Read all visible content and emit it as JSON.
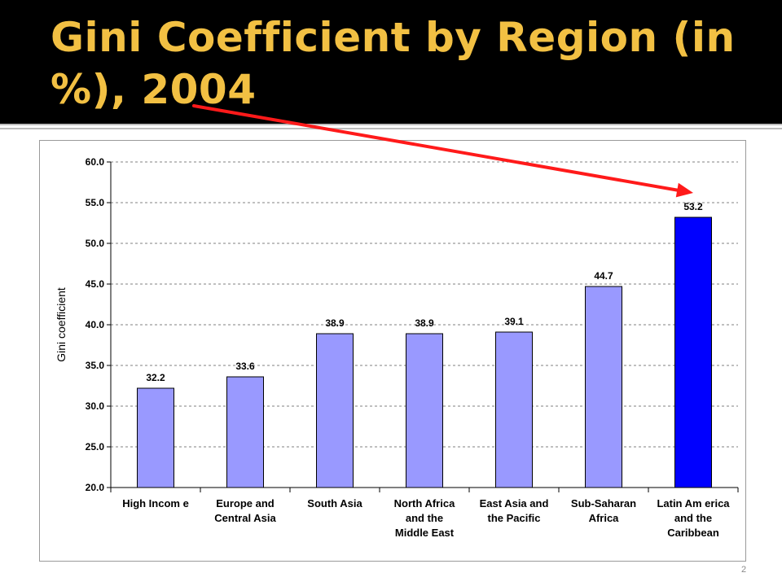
{
  "slide": {
    "title": "Gini Coefficient by Region (in %), 2004",
    "page_number": "2"
  },
  "colors": {
    "header_bg": "#000000",
    "title_color": "#f2c043",
    "bar_default": "#9999ff",
    "bar_highlight": "#0000ff",
    "arrow": "#ff1a1a"
  },
  "chart_data": {
    "type": "bar",
    "title": "",
    "xlabel": "",
    "ylabel": "Gini coefficient",
    "ylim": [
      20,
      60
    ],
    "ytick_step": 5,
    "ytick_labels": [
      "20.0",
      "25.0",
      "30.0",
      "35.0",
      "40.0",
      "45.0",
      "50.0",
      "55.0",
      "60.0"
    ],
    "grid": true,
    "categories": [
      [
        "High Incom e"
      ],
      [
        "Europe and",
        "Central Asia"
      ],
      [
        "South Asia"
      ],
      [
        "North Africa",
        "and the",
        "Middle East"
      ],
      [
        "East Asia and",
        "the Pacific"
      ],
      [
        "Sub-Saharan",
        "Africa"
      ],
      [
        "Latin Am erica",
        "and the",
        "Caribbean"
      ]
    ],
    "values": [
      32.2,
      33.6,
      38.9,
      38.9,
      39.1,
      44.7,
      53.2
    ],
    "data_labels": [
      "32.2",
      "33.6",
      "38.9",
      "38.9",
      "39.1",
      "44.7",
      "53.2"
    ],
    "highlight_index": 6,
    "annotation": "arrow from title to Latin America and the Caribbean bar"
  }
}
